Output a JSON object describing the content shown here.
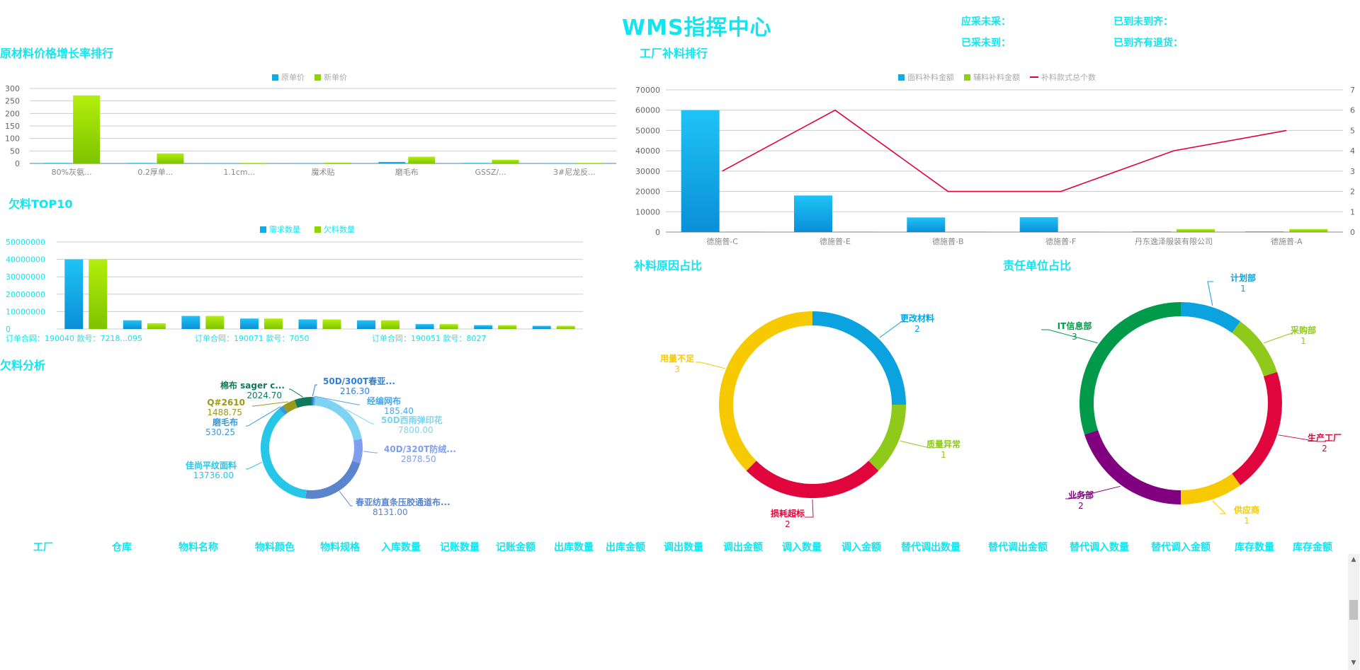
{
  "header": {
    "title": "WMS指挥中心",
    "stats": {
      "s1": "应采未采：",
      "s2": "已到未到齐：",
      "s3": "已采未到：",
      "s4": "已到齐有退货："
    }
  },
  "colors": {
    "blue": "#0aaee8",
    "green": "#8fd400",
    "red": "#e0003c",
    "accent": "#11e6f0"
  },
  "chart_data": [
    {
      "id": "price_growth",
      "type": "bar",
      "title": "原材料价格增长率排行",
      "categories": [
        "80%灰氨...",
        "0.2厚单...",
        "1.1cm...",
        "魔术贴",
        "磨毛布",
        "GSSZ/...",
        "3#尼龙反..."
      ],
      "series": [
        {
          "name": "原单价",
          "values": [
            2,
            2,
            1,
            1,
            6,
            2,
            1
          ]
        },
        {
          "name": "新单价",
          "values": [
            272,
            40,
            2,
            3,
            27,
            15,
            2
          ]
        }
      ],
      "yticks": [
        "0",
        "50",
        "100",
        "150",
        "200",
        "250",
        "300"
      ],
      "ylim": [
        0,
        300
      ]
    },
    {
      "id": "factory_supplement",
      "type": "bar",
      "title": "工厂补料排行",
      "categories": [
        "德施普-C",
        "德施普-E",
        "德施普-B",
        "德施普-F",
        "丹东逸泽服装有限公司",
        "德施普-A"
      ],
      "series": [
        {
          "name": "面料补料金额",
          "values": [
            60000,
            18000,
            7200,
            7300,
            300,
            300
          ]
        },
        {
          "name": "辅料补料金额",
          "values": [
            300,
            300,
            300,
            300,
            1500,
            1500
          ]
        },
        {
          "name": "补料款式总个数",
          "values": [
            3,
            6,
            2,
            2,
            4,
            5
          ]
        }
      ],
      "yticks": [
        "0",
        "10000",
        "20000",
        "30000",
        "40000",
        "50000",
        "60000",
        "70000"
      ],
      "y2ticks": [
        "0",
        "1",
        "2",
        "3",
        "4",
        "5",
        "6",
        "7"
      ],
      "ylim": [
        0,
        70000
      ],
      "y2lim": [
        0,
        7
      ]
    },
    {
      "id": "shortage_top10",
      "type": "bar",
      "title": "欠料TOP10",
      "legend": [
        "需求数量",
        "欠料数量"
      ],
      "series": [
        {
          "name": "需求数量",
          "values": [
            40000000,
            5000000,
            7500000,
            6000000,
            5500000,
            5000000,
            2800000,
            2200000,
            1800000
          ]
        },
        {
          "name": "欠料数量",
          "values": [
            40000000,
            3300000,
            7500000,
            6000000,
            5500000,
            5000000,
            2800000,
            2200000,
            1800000
          ]
        }
      ],
      "yticks": [
        "0",
        "10000000",
        "20000000",
        "30000000",
        "40000000",
        "50000000"
      ],
      "ylim": [
        0,
        50000000
      ],
      "footnotes": [
        "订单合同：190040 款号：7218...095",
        "订单合同：190071 款号：7050",
        "订单合同：190051 款号：8027"
      ]
    },
    {
      "id": "shortage_analysis",
      "type": "pie",
      "title": "欠料分析",
      "slices": [
        {
          "label": "50D/300T春亚...",
          "value": 216.3,
          "color": "#2f7fd8"
        },
        {
          "label": "经编网布",
          "value": 185.4,
          "color": "#4aa8e8"
        },
        {
          "label": "50D西雨弹印花",
          "value": 7800.0,
          "color": "#7dd3f2"
        },
        {
          "label": "40D/320T防绒...",
          "value": 2878.5,
          "color": "#7f9ef0"
        },
        {
          "label": "春亚纺直条压胶通道布...",
          "value": 8131.0,
          "color": "#5a85cc"
        },
        {
          "label": "佳尚平纹面料",
          "value": 13736.0,
          "color": "#25c6e8"
        },
        {
          "label": "磨毛布",
          "value": 530.25,
          "color": "#3a9ad8"
        },
        {
          "label": "Q#2610",
          "value": 1488.75,
          "color": "#9a9a1a"
        },
        {
          "label": "棉布 sager c...",
          "value": 2024.7,
          "color": "#0e7a5a"
        }
      ]
    },
    {
      "id": "supplement_reason",
      "type": "pie",
      "title": "补料原因占比",
      "slices": [
        {
          "label": "更改材料",
          "value": 2,
          "color": "#0aa3e0"
        },
        {
          "label": "质量异常",
          "value": 1,
          "color": "#8fc91a"
        },
        {
          "label": "损耗超标",
          "value": 2,
          "color": "#e0063d"
        },
        {
          "label": "用量不足",
          "value": 3,
          "color": "#f7c900"
        }
      ]
    },
    {
      "id": "responsible_unit",
      "type": "pie",
      "title": "责任单位占比",
      "slices": [
        {
          "label": "计划部",
          "value": 1,
          "color": "#0aa3e0"
        },
        {
          "label": "采购部",
          "value": 1,
          "color": "#8fc91a"
        },
        {
          "label": "生产工厂",
          "value": 2,
          "color": "#e0063d"
        },
        {
          "label": "供应商",
          "value": 1,
          "color": "#f7c900"
        },
        {
          "label": "业务部",
          "value": 2,
          "color": "#800080"
        },
        {
          "label": "IT信息部",
          "value": 3,
          "color": "#009a4a"
        }
      ]
    }
  ],
  "table": {
    "headers": [
      "工厂",
      "仓库",
      "物料名称",
      "物料颜色",
      "物料规格",
      "入库数量",
      "记账数量",
      "记账金额",
      "出库数量",
      "出库金额",
      "调出数量",
      "调出金额",
      "调入数量",
      "调入金额",
      "替代调出数量",
      "替代调出金额",
      "替代调入数量",
      "替代调入金额",
      "库存数量",
      "库存金额"
    ]
  }
}
